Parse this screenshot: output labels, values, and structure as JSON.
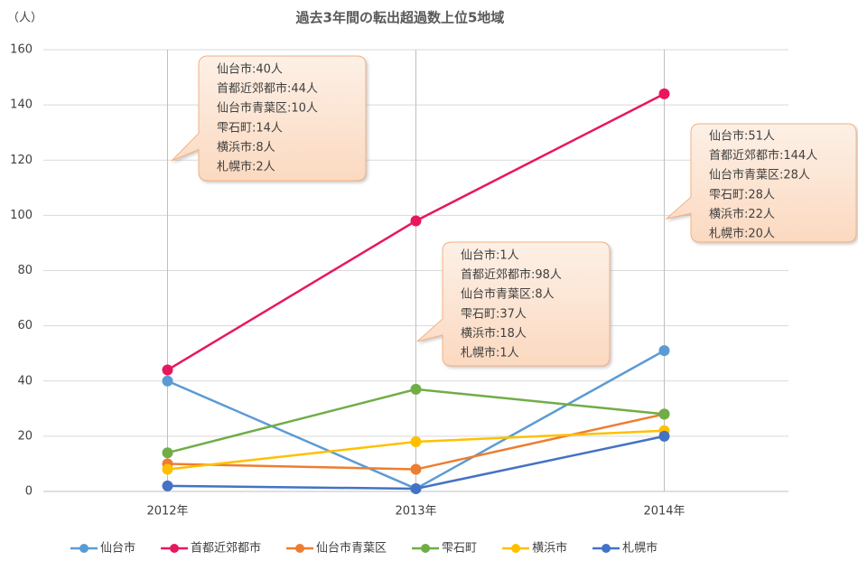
{
  "chart_data": {
    "type": "line",
    "title": "過去3年間の転出超過数上位5地域",
    "y_label": "（人）",
    "categories": [
      "2012年",
      "2013年",
      "2014年"
    ],
    "series": [
      {
        "name": "仙台市",
        "color": "#5b9bd5",
        "values": [
          40,
          1,
          51
        ]
      },
      {
        "name": "首都近郊都市",
        "color": "#e8175d",
        "values": [
          44,
          98,
          144
        ]
      },
      {
        "name": "仙台市青葉区",
        "color": "#ed7d31",
        "values": [
          10,
          8,
          28
        ]
      },
      {
        "name": "雫石町",
        "color": "#70ad47",
        "values": [
          14,
          37,
          28
        ]
      },
      {
        "name": "横浜市",
        "color": "#ffc000",
        "values": [
          8,
          18,
          22
        ]
      },
      {
        "name": "札幌市",
        "color": "#4472c4",
        "values": [
          2,
          1,
          20
        ]
      }
    ],
    "ylim": [
      0,
      160
    ],
    "yticks": [
      0,
      20,
      40,
      60,
      80,
      100,
      120,
      140,
      160
    ],
    "grid": true,
    "legend": "bottom",
    "annotations": [
      {
        "lines": [
          "仙台市:40人",
          "首都近郊都市:44人",
          "仙台市青葉区:10人",
          "雫石町:14人",
          "横浜市:8人",
          "札幌市:2人"
        ]
      },
      {
        "lines": [
          "仙台市:1人",
          "首都近郊都市:98人",
          "仙台市青葉区:8人",
          "雫石町:37人",
          "横浜市:18人",
          "札幌市:1人"
        ]
      },
      {
        "lines": [
          "仙台市:51人",
          "首都近郊都市:144人",
          "仙台市青葉区:28人",
          "雫石町:28人",
          "横浜市:22人",
          "札幌市:20人"
        ]
      }
    ]
  }
}
